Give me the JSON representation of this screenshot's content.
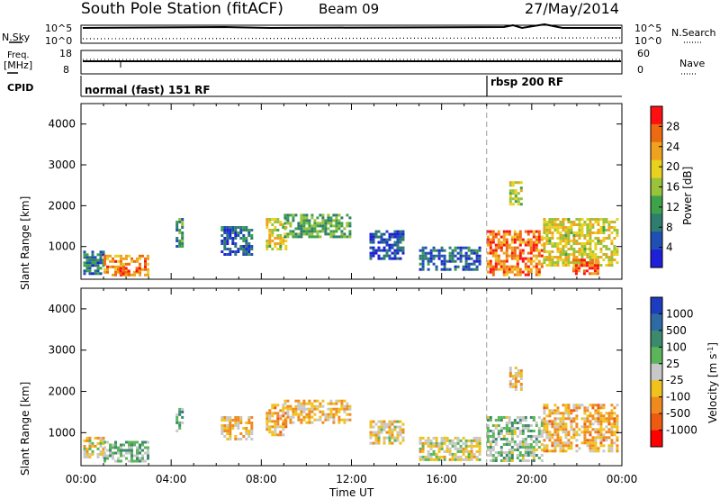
{
  "header": {
    "station": "South Pole Station (fitACF)",
    "beam": "Beam 09",
    "date": "27/May/2014"
  },
  "nsky_panel": {
    "left_label": "N.Sky",
    "right_label": "N.Search",
    "left_ticks": [
      "10^5",
      "10^0"
    ],
    "right_ticks": [
      "10^5",
      "10^0"
    ]
  },
  "freq_panel": {
    "left_label_line1": "Freq.",
    "left_label_line2": "[MHz]",
    "right_label": "Nave",
    "left_ticks": [
      "18",
      "8"
    ],
    "right_ticks": [
      "60",
      "0"
    ]
  },
  "cpid_panel": {
    "label": "CPID",
    "modes": [
      {
        "name": "normal (fast) 151 RF",
        "start_hour": 0
      },
      {
        "name": "rbsp 200 RF",
        "start_hour": 18
      }
    ]
  },
  "colors": {
    "power_scale": [
      "#1e20d8",
      "#1f4fb4",
      "#2f7d6e",
      "#3ea24a",
      "#9ac23a",
      "#e8d21e",
      "#f0a21e",
      "#ee6a10",
      "#ff1010"
    ],
    "velocity_scale": [
      "#1d3cc0",
      "#2f6aa5",
      "#3c8a6e",
      "#5bb55a",
      "#c8c8c8",
      "#f0c21e",
      "#f08a1e",
      "#ee5a10",
      "#ff0000"
    ]
  },
  "chart_data": [
    {
      "type": "heatmap",
      "name": "power",
      "ylabel": "Slant Range [km]",
      "yticks": [
        "1000",
        "2000",
        "3000",
        "4000"
      ],
      "ylim": [
        200,
        4500
      ],
      "xticks": [
        "00:00",
        "04:00",
        "08:00",
        "12:00",
        "16:00",
        "20:00",
        "00:00"
      ],
      "xlim_hours": [
        0,
        24
      ],
      "colorbar_label": "Power [dB]",
      "colorbar_ticks": [
        "4",
        "8",
        "12",
        "16",
        "20",
        "24",
        "28"
      ],
      "clim": [
        0,
        30
      ],
      "mode_change_hour": 18,
      "echo_regions": [
        {
          "t0": 0.1,
          "t1": 1.1,
          "r0": 300,
          "r1": 900,
          "val": 8
        },
        {
          "t0": 1.0,
          "t1": 3.0,
          "r0": 300,
          "r1": 800,
          "val": 22
        },
        {
          "t0": 1.7,
          "t1": 2.6,
          "r0": 300,
          "r1": 500,
          "val": 28
        },
        {
          "t0": 4.2,
          "t1": 4.6,
          "r0": 1000,
          "r1": 1700,
          "val": 10
        },
        {
          "t0": 6.2,
          "t1": 7.6,
          "r0": 800,
          "r1": 1500,
          "val": 6
        },
        {
          "t0": 8.2,
          "t1": 9.2,
          "r0": 900,
          "r1": 1700,
          "val": 18
        },
        {
          "t0": 9.0,
          "t1": 12.0,
          "r0": 1200,
          "r1": 1800,
          "val": 12
        },
        {
          "t0": 12.8,
          "t1": 14.4,
          "r0": 700,
          "r1": 1400,
          "val": 5
        },
        {
          "t0": 15.0,
          "t1": 17.8,
          "r0": 400,
          "r1": 1000,
          "val": 6
        },
        {
          "t0": 18.0,
          "t1": 20.5,
          "r0": 300,
          "r1": 1400,
          "val": 24
        },
        {
          "t0": 20.5,
          "t1": 23.9,
          "r0": 500,
          "r1": 1700,
          "val": 18
        },
        {
          "t0": 19.0,
          "t1": 19.6,
          "r0": 2000,
          "r1": 2600,
          "val": 16
        },
        {
          "t0": 21.8,
          "t1": 23.0,
          "r0": 300,
          "r1": 700,
          "val": 26
        }
      ]
    },
    {
      "type": "heatmap",
      "name": "velocity",
      "ylabel": "Slant Range [km]",
      "yticks": [
        "1000",
        "2000",
        "3000",
        "4000"
      ],
      "ylim": [
        200,
        4500
      ],
      "xticks": [
        "00:00",
        "04:00",
        "08:00",
        "12:00",
        "16:00",
        "20:00",
        "00:00"
      ],
      "xlabel": "Time UT",
      "xlim_hours": [
        0,
        24
      ],
      "colorbar_label": "Velocity [m s^-1]",
      "colorbar_ticks": [
        "1000",
        "500",
        "100",
        "25",
        "-25",
        "-100",
        "-500",
        "-1000"
      ],
      "clim": [
        -1000,
        1000
      ],
      "mode_change_hour": 18,
      "echo_regions": [
        {
          "t0": 0.1,
          "t1": 1.1,
          "r0": 400,
          "r1": 900,
          "val": -150
        },
        {
          "t0": 1.0,
          "t1": 3.0,
          "r0": 300,
          "r1": 800,
          "val": 200
        },
        {
          "t0": 4.2,
          "t1": 4.6,
          "r0": 1000,
          "r1": 1600,
          "val": 300
        },
        {
          "t0": 6.2,
          "t1": 7.6,
          "r0": 800,
          "r1": 1400,
          "val": -200
        },
        {
          "t0": 8.2,
          "t1": 9.2,
          "r0": 900,
          "r1": 1700,
          "val": -300
        },
        {
          "t0": 9.0,
          "t1": 12.0,
          "r0": 1200,
          "r1": 1800,
          "val": -250
        },
        {
          "t0": 12.8,
          "t1": 14.4,
          "r0": 700,
          "r1": 1300,
          "val": -120
        },
        {
          "t0": 15.0,
          "t1": 17.8,
          "r0": 300,
          "r1": 900,
          "val": -60
        },
        {
          "t0": 18.0,
          "t1": 20.5,
          "r0": 300,
          "r1": 1400,
          "val": 150
        },
        {
          "t0": 20.5,
          "t1": 23.9,
          "r0": 500,
          "r1": 1700,
          "val": -300
        },
        {
          "t0": 19.0,
          "t1": 19.6,
          "r0": 2000,
          "r1": 2600,
          "val": -200
        }
      ]
    }
  ]
}
